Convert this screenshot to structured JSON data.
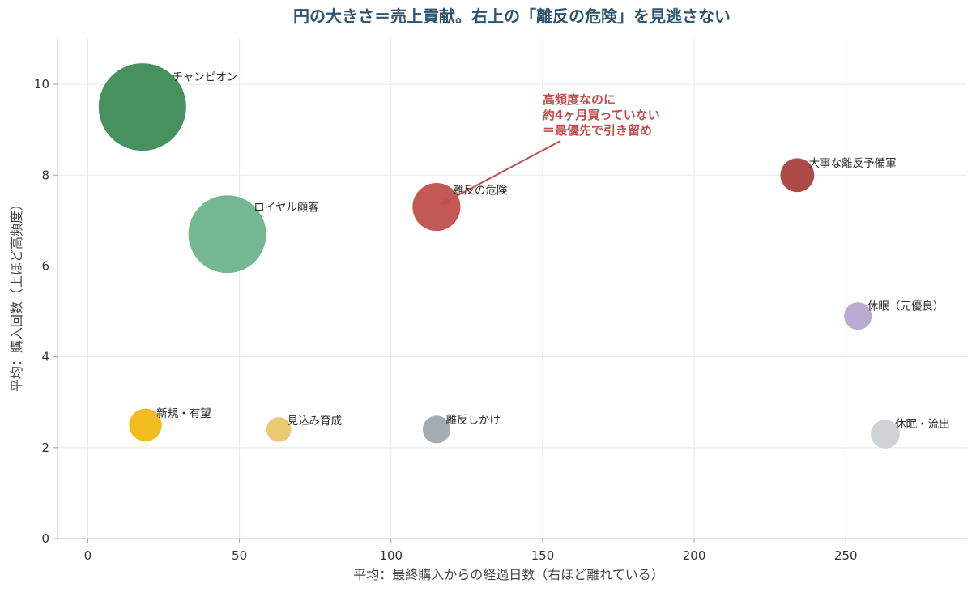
{
  "chart_data": {
    "type": "scatter",
    "title": "円の大きさ＝売上貢献。右上の「離反の危険」を見逃さない",
    "xlabel": "平均：最終購入からの経過日数（右ほど離れている）",
    "ylabel": "平均：購入回数（上ほど高頻度）",
    "xlim": [
      -10,
      290
    ],
    "ylim": [
      0,
      11
    ],
    "xticks": [
      0,
      50,
      100,
      150,
      200,
      250
    ],
    "yticks": [
      0,
      2,
      4,
      6,
      8,
      10
    ],
    "grid": true,
    "points": [
      {
        "label": "チャンピオン",
        "x": 18,
        "y": 9.5,
        "size": 1.0,
        "color": "#3d8b55"
      },
      {
        "label": "ロイヤル顧客",
        "x": 46,
        "y": 6.7,
        "size": 0.79,
        "color": "#6db38a"
      },
      {
        "label": "離反の危険",
        "x": 115,
        "y": 7.3,
        "size": 0.3,
        "color": "#c0504d"
      },
      {
        "label": "大事な離反予備軍",
        "x": 234,
        "y": 8.0,
        "size": 0.15,
        "color": "#a93f3c"
      },
      {
        "label": "休眠（元優良）",
        "x": 254,
        "y": 4.9,
        "size": 0.1,
        "color": "#b8a4cc"
      },
      {
        "label": "新規・有望",
        "x": 19,
        "y": 2.5,
        "size": 0.14,
        "color": "#f0b816"
      },
      {
        "label": "見込み育成",
        "x": 63,
        "y": 2.4,
        "size": 0.08,
        "color": "#e8c76a"
      },
      {
        "label": "離反しかけ",
        "x": 115,
        "y": 2.4,
        "size": 0.1,
        "color": "#9ea8af"
      },
      {
        "label": "休眠・流出",
        "x": 263,
        "y": 2.3,
        "size": 0.11,
        "color": "#cdd1d4"
      }
    ],
    "annotation": {
      "lines": [
        "高頻度なのに",
        "約4ヶ月買っていない",
        "＝最優先で引き留め"
      ],
      "target": "離反の危険",
      "color": "#c0504d"
    }
  }
}
